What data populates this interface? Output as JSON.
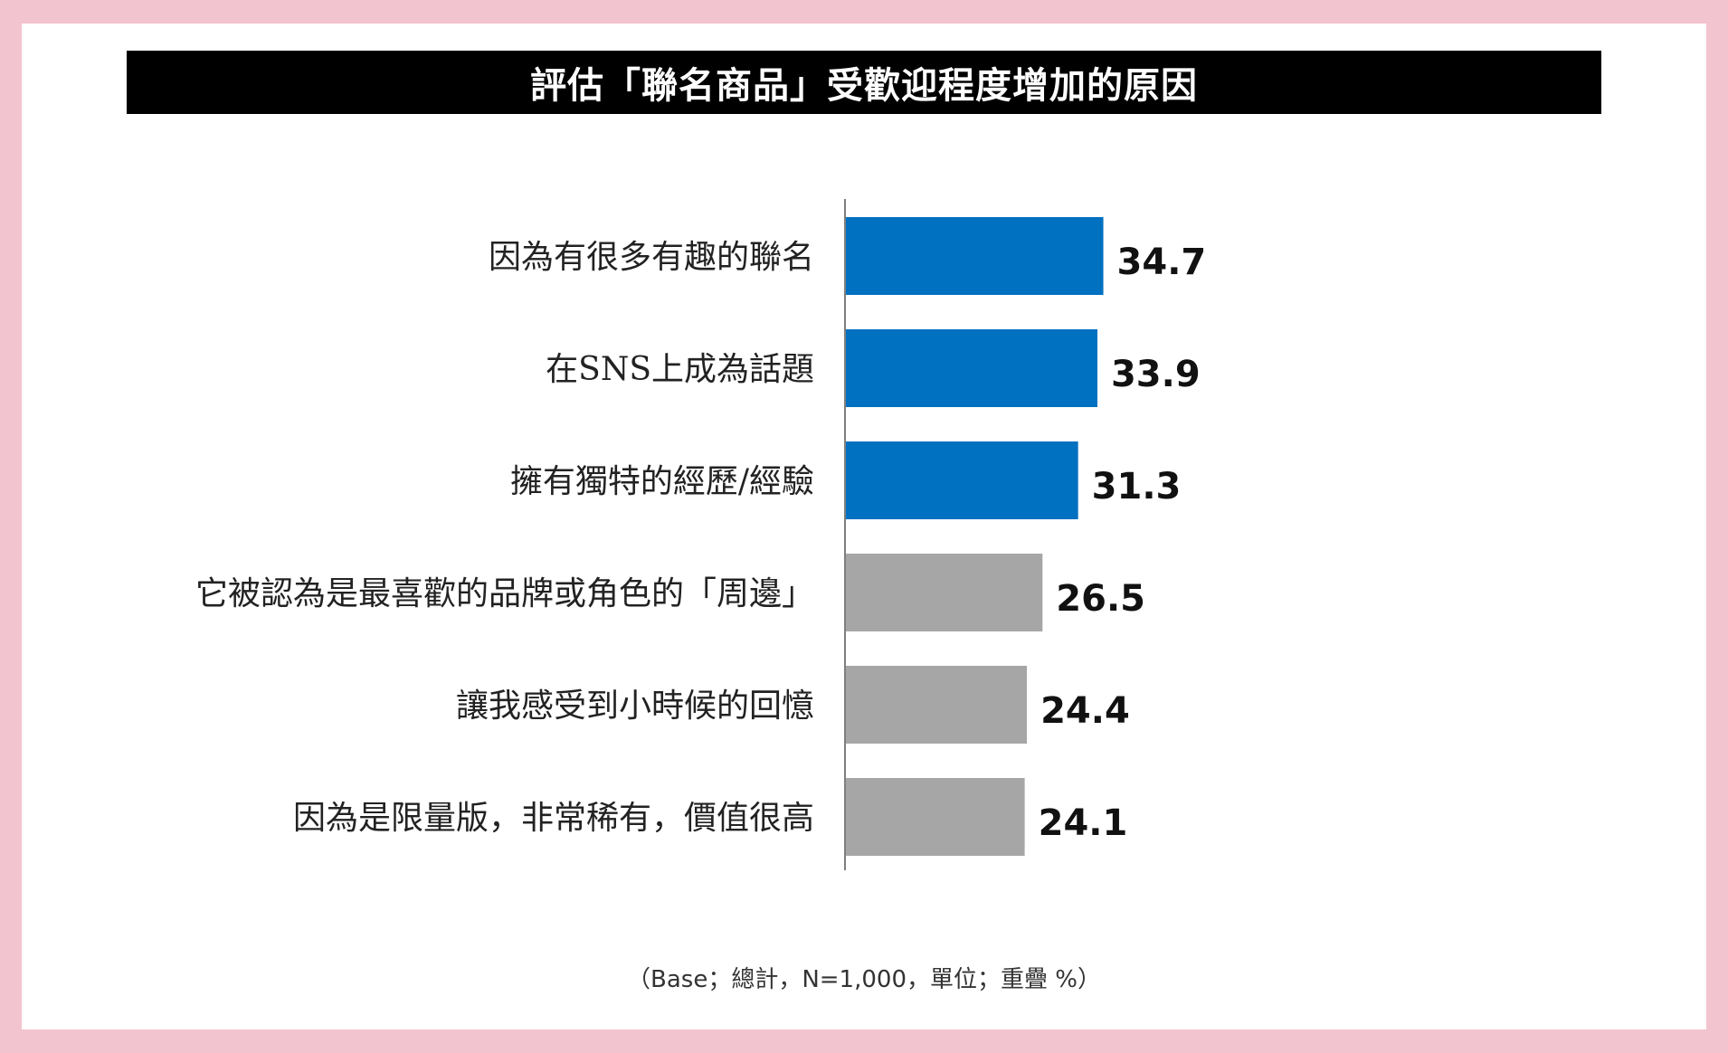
{
  "title": "評估「聯名商品」受歡迎程度增加的原因",
  "footnote": "（Base；總計，N=1,000，單位；重疊 %）",
  "colors": {
    "highlight": "#0070c0",
    "other": "#a6a6a6",
    "axis": "#7f7f7f"
  },
  "chart_data": {
    "type": "bar",
    "orientation": "horizontal",
    "categories": [
      "因為有很多有趣的聯名",
      "在SNS上成為話題",
      "擁有獨特的經歷/經驗",
      "它被認為是最喜歡的品牌或角色的「周邊」",
      "讓我感受到小時候的回憶",
      "因為是限量版，非常稀有，價值很高"
    ],
    "values": [
      34.7,
      33.9,
      31.3,
      26.5,
      24.4,
      24.1
    ],
    "value_labels": [
      "34.7",
      "33.9",
      "31.3",
      "26.5",
      "24.4",
      "24.1"
    ],
    "highlighted": [
      true,
      true,
      true,
      false,
      false,
      false
    ],
    "xlim": [
      0,
      100
    ],
    "grid": false,
    "unit": "%"
  }
}
